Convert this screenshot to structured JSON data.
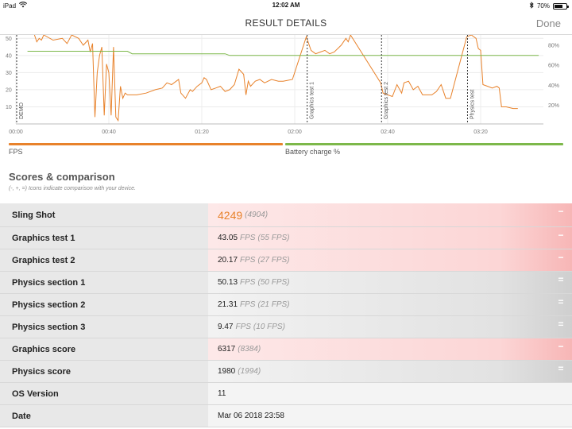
{
  "status_bar": {
    "device": "iPad",
    "time": "12:02 AM",
    "battery_percent": "70%",
    "battery_level": 0.7
  },
  "nav": {
    "title": "RESULT DETAILS",
    "done_label": "Done"
  },
  "chart_data": {
    "type": "line",
    "x_unit": "time (mm:ss)",
    "x_ticks": [
      "00:00",
      "00:40",
      "01:20",
      "02:00",
      "02:40",
      "03:20"
    ],
    "y_left_ticks": [
      "10",
      "20",
      "30",
      "40",
      "50"
    ],
    "y_right_ticks": [
      "20%",
      "40%",
      "60%",
      "80%"
    ],
    "y_left_range": [
      0,
      52
    ],
    "x_range_seconds": [
      0,
      227
    ],
    "segment_markers": [
      {
        "label": "DEMO",
        "x": 0
      },
      {
        "label": "Graphics test 1",
        "x": 125
      },
      {
        "label": "Graphics test 2",
        "x": 157
      },
      {
        "label": "Physics test",
        "x": 194
      }
    ],
    "series": [
      {
        "name": "FPS",
        "color": "#e8822b",
        "points": [
          [
            8,
            52
          ],
          [
            9,
            48
          ],
          [
            10,
            50
          ],
          [
            11,
            49
          ],
          [
            12,
            52
          ],
          [
            16,
            49
          ],
          [
            20,
            50
          ],
          [
            22,
            47
          ],
          [
            24,
            52
          ],
          [
            27,
            50
          ],
          [
            29,
            46
          ],
          [
            31,
            49
          ],
          [
            32,
            42
          ],
          [
            33,
            47
          ],
          [
            34,
            4
          ],
          [
            35,
            30
          ],
          [
            36,
            40
          ],
          [
            37,
            45
          ],
          [
            38,
            5
          ],
          [
            39,
            35
          ],
          [
            40,
            30
          ],
          [
            41,
            5
          ],
          [
            42,
            45
          ],
          [
            43,
            4
          ],
          [
            44,
            2
          ],
          [
            45,
            22
          ],
          [
            46,
            15
          ],
          [
            47,
            18
          ],
          [
            48,
            17
          ],
          [
            52,
            17
          ],
          [
            56,
            18
          ],
          [
            60,
            20
          ],
          [
            63,
            21
          ],
          [
            65,
            24
          ],
          [
            67,
            23
          ],
          [
            69,
            25
          ],
          [
            70,
            26
          ],
          [
            71,
            18
          ],
          [
            73,
            15
          ],
          [
            75,
            20
          ],
          [
            76,
            19
          ],
          [
            78,
            22
          ],
          [
            80,
            24
          ],
          [
            81,
            27
          ],
          [
            82,
            26
          ],
          [
            84,
            20
          ],
          [
            86,
            21
          ],
          [
            88,
            22
          ],
          [
            90,
            19
          ],
          [
            92,
            20
          ],
          [
            94,
            23
          ],
          [
            96,
            32
          ],
          [
            98,
            29
          ],
          [
            99,
            17
          ],
          [
            100,
            25
          ],
          [
            101,
            22
          ],
          [
            103,
            25
          ],
          [
            105,
            26
          ],
          [
            107,
            24
          ],
          [
            110,
            26
          ],
          [
            113,
            25
          ],
          [
            115,
            25
          ],
          [
            119,
            26
          ],
          [
            125,
            51
          ],
          [
            127,
            43
          ],
          [
            129,
            41
          ],
          [
            131,
            42
          ],
          [
            133,
            43
          ],
          [
            135,
            41
          ],
          [
            137,
            42
          ],
          [
            140,
            46
          ],
          [
            142,
            50
          ],
          [
            143,
            48
          ],
          [
            144,
            52
          ],
          [
            157,
            24
          ],
          [
            158,
            18
          ],
          [
            160,
            17
          ],
          [
            162,
            16
          ],
          [
            164,
            23
          ],
          [
            166,
            18
          ],
          [
            167,
            24
          ],
          [
            169,
            25
          ],
          [
            171,
            20
          ],
          [
            173,
            22
          ],
          [
            175,
            17
          ],
          [
            177,
            17
          ],
          [
            179,
            17
          ],
          [
            181,
            19
          ],
          [
            183,
            23
          ],
          [
            185,
            15
          ],
          [
            187,
            15
          ],
          [
            194,
            51
          ],
          [
            196,
            52
          ],
          [
            198,
            50
          ],
          [
            199,
            44
          ],
          [
            200,
            43
          ],
          [
            201,
            23
          ],
          [
            203,
            22
          ],
          [
            205,
            21
          ],
          [
            207,
            22
          ],
          [
            208,
            21
          ],
          [
            209,
            10
          ],
          [
            211,
            10
          ],
          [
            214,
            9
          ],
          [
            216,
            9
          ]
        ]
      },
      {
        "name": "Battery charge %",
        "color": "#7db84a",
        "points": [
          [
            5,
            42.5
          ],
          [
            48,
            42.5
          ],
          [
            50,
            41
          ],
          [
            90,
            41
          ],
          [
            92,
            40
          ],
          [
            125,
            40
          ],
          [
            225,
            40
          ]
        ]
      }
    ],
    "legend": [
      "FPS",
      "Battery charge %"
    ]
  },
  "legend": {
    "fps_label": "FPS",
    "fps_color": "#e8822b",
    "battery_label": "Battery charge %",
    "battery_color": "#7db84a"
  },
  "scores": {
    "title": "Scores & comparison",
    "subtitle": "(-, +, =) Icons indicate comparison with your device.",
    "rows": [
      {
        "label": "Sling Shot",
        "value": "4249",
        "unit": "",
        "ref": "(4904)",
        "compare": "minus",
        "tint": "red",
        "big": true
      },
      {
        "label": "Graphics test 1",
        "value": "43.05",
        "unit": "FPS",
        "ref": "(55 FPS)",
        "compare": "minus",
        "tint": "red"
      },
      {
        "label": "Graphics test 2",
        "value": "20.17",
        "unit": "FPS",
        "ref": "(27 FPS)",
        "compare": "minus",
        "tint": "red"
      },
      {
        "label": "Physics section 1",
        "value": "50.13",
        "unit": "FPS",
        "ref": "(50 FPS)",
        "compare": "equal",
        "tint": "grey"
      },
      {
        "label": "Physics section 2",
        "value": "21.31",
        "unit": "FPS",
        "ref": "(21 FPS)",
        "compare": "equal",
        "tint": "grey"
      },
      {
        "label": "Physics section 3",
        "value": "9.47",
        "unit": "FPS",
        "ref": "(10 FPS)",
        "compare": "equal",
        "tint": "grey"
      },
      {
        "label": "Graphics score",
        "value": "6317",
        "unit": "",
        "ref": "(8384)",
        "compare": "minus",
        "tint": "red"
      },
      {
        "label": "Physics score",
        "value": "1980",
        "unit": "",
        "ref": "(1994)",
        "compare": "equal",
        "tint": "grey"
      },
      {
        "label": "OS Version",
        "value": "11",
        "unit": "",
        "ref": "",
        "compare": "",
        "tint": "none"
      },
      {
        "label": "Date",
        "value": "Mar 06 2018 23:58",
        "unit": "",
        "ref": "",
        "compare": "",
        "tint": "none"
      }
    ]
  }
}
